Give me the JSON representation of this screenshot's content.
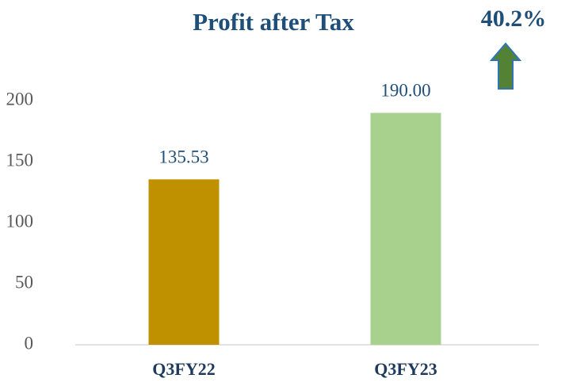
{
  "chart_data": {
    "type": "bar",
    "title": "Profit after Tax",
    "annotation": "40.2%",
    "categories": [
      "Q3FY22",
      "Q3FY23"
    ],
    "values": [
      135.53,
      190
    ],
    "value_labels": [
      "135.53",
      "190.00"
    ],
    "colors": [
      "#bf9000",
      "#a9d18e"
    ],
    "ylim": [
      0,
      200
    ],
    "yticks": [
      0,
      50,
      100,
      150,
      200
    ],
    "grid": false
  }
}
